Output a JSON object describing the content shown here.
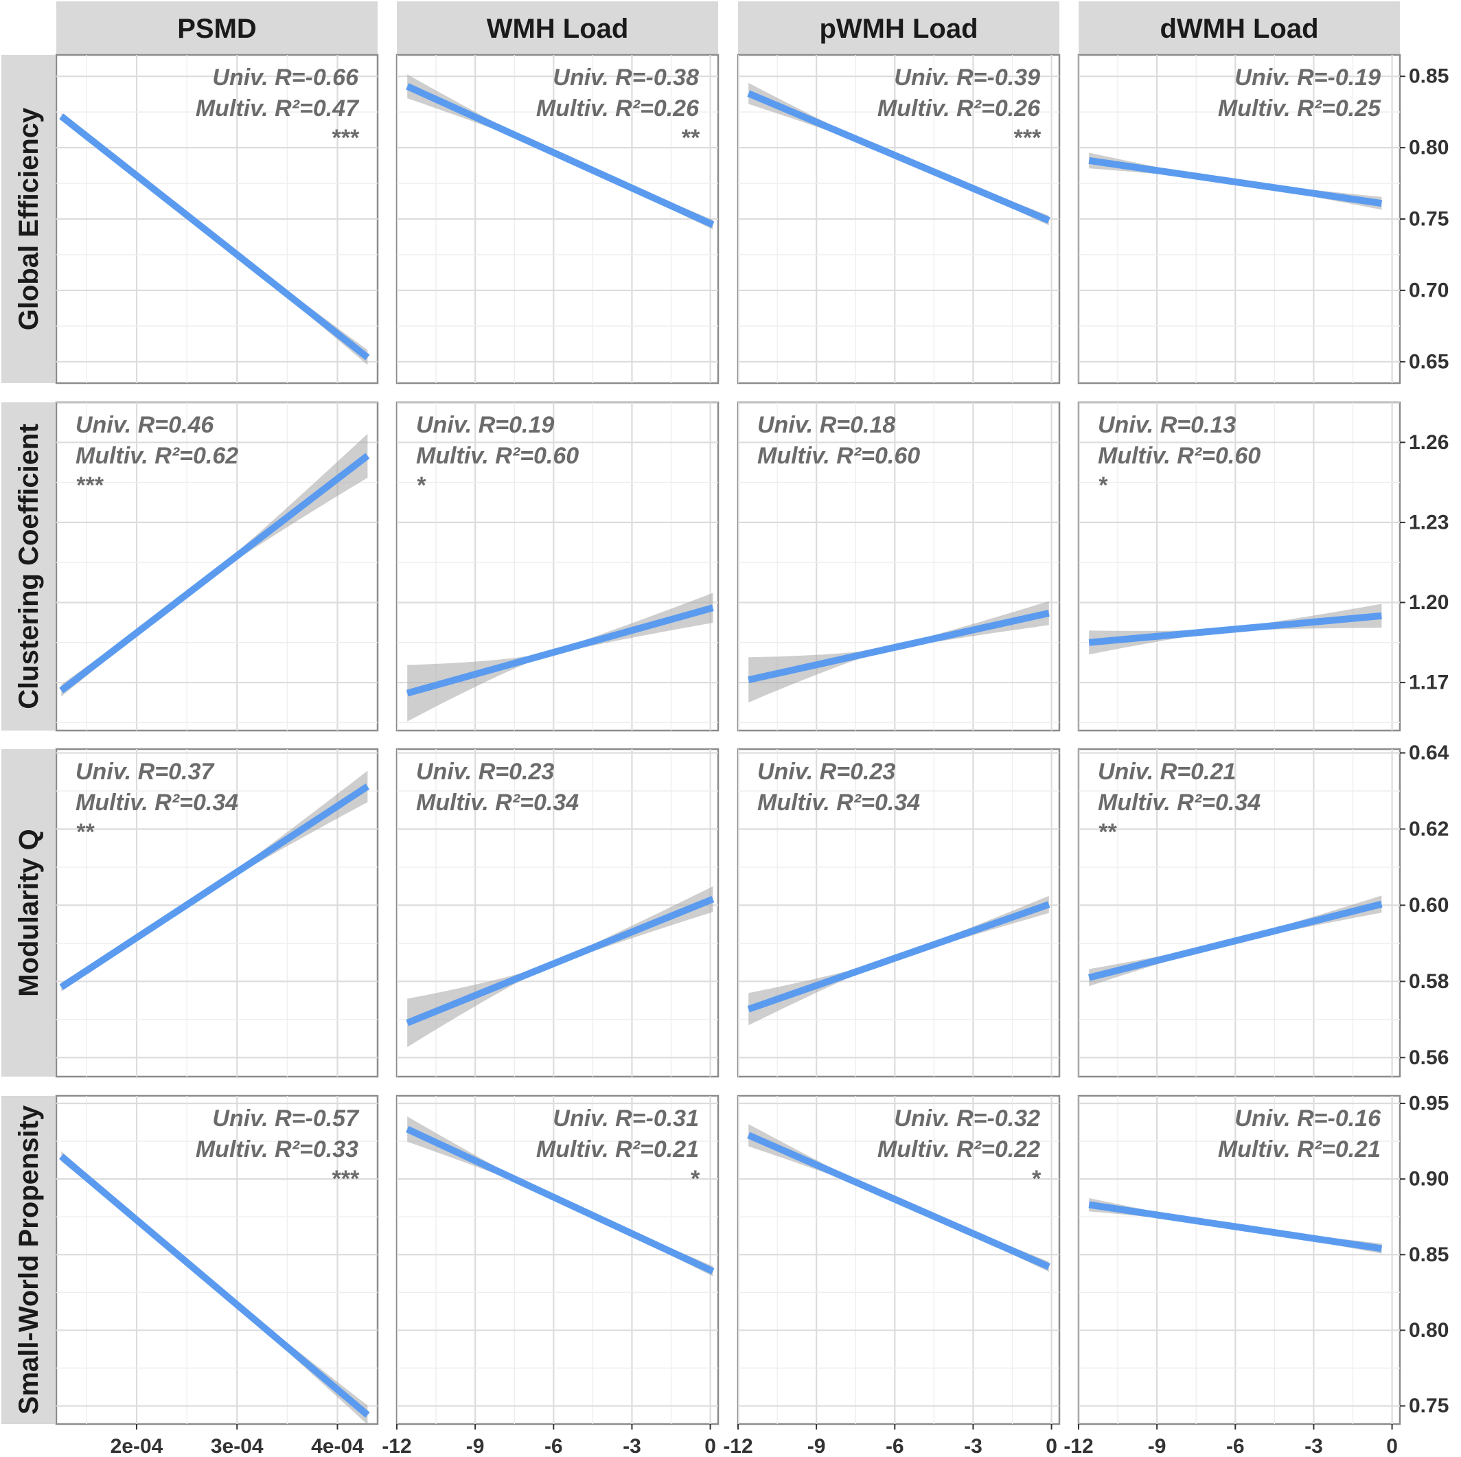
{
  "chart_data": {
    "type": "line",
    "colors": {
      "fit_line": "#5b9bef",
      "confidence_band": "#a6a6a6",
      "strip": "#d9d9d9"
    },
    "columns": [
      {
        "label": "PSMD",
        "xlim": [
          0.00012,
          0.00044
        ],
        "ticks": [
          0.0002,
          0.0003,
          0.0004
        ],
        "tick_labels": [
          "2e-04",
          "3e-04",
          "4e-04"
        ]
      },
      {
        "label": "WMH Load",
        "xlim": [
          -12,
          0.3
        ],
        "ticks": [
          -12,
          -9,
          -6,
          -3,
          0
        ],
        "tick_labels": [
          "-12",
          "-9",
          "-6",
          "-3",
          "0"
        ]
      },
      {
        "label": "pWMH Load",
        "xlim": [
          -12,
          0.3
        ],
        "ticks": [
          -12,
          -9,
          -6,
          -3,
          0
        ],
        "tick_labels": [
          "-12",
          "-9",
          "-6",
          "-3",
          "0"
        ]
      },
      {
        "label": "dWMH Load",
        "xlim": [
          -12,
          0.3
        ],
        "ticks": [
          -12,
          -9,
          -6,
          -3,
          0
        ],
        "tick_labels": [
          "-12",
          "-9",
          "-6",
          "-3",
          "0"
        ]
      }
    ],
    "rows": [
      {
        "label": "Global Efficiency",
        "ylim": [
          0.635,
          0.865
        ],
        "ticks": [
          0.65,
          0.7,
          0.75,
          0.8,
          0.85
        ],
        "tick_labels": [
          "0.65",
          "0.70",
          "0.75",
          "0.80",
          "0.85"
        ]
      },
      {
        "label": "Clustering Coefficient",
        "ylim": [
          1.152,
          1.275
        ],
        "ticks": [
          1.17,
          1.2,
          1.23,
          1.26
        ],
        "tick_labels": [
          "1.17",
          "1.20",
          "1.23",
          "1.26"
        ]
      },
      {
        "label": "Modularity Q",
        "ylim": [
          0.555,
          0.641
        ],
        "ticks": [
          0.56,
          0.58,
          0.6,
          0.62,
          0.64
        ],
        "tick_labels": [
          "0.56",
          "0.58",
          "0.60",
          "0.62",
          "0.64"
        ]
      },
      {
        "label": "Small-World Propensity",
        "ylim": [
          0.738,
          0.955
        ],
        "ticks": [
          0.75,
          0.8,
          0.85,
          0.9,
          0.95
        ],
        "tick_labels": [
          "0.75",
          "0.80",
          "0.85",
          "0.90",
          "0.95"
        ]
      }
    ],
    "panels": [
      {
        "row": 0,
        "col": 0,
        "univ": "Univ. R=-0.66",
        "multiv": "Multiv. R²=0.47",
        "sig": "***",
        "x": [
          0.000125,
          0.00043
        ],
        "y": [
          0.822,
          0.653
        ],
        "se": [
          0.002,
          0.005
        ]
      },
      {
        "row": 0,
        "col": 1,
        "univ": "Univ. R=-0.38",
        "multiv": "Multiv. R²=0.26",
        "sig": "**",
        "x": [
          -11.6,
          0.1
        ],
        "y": [
          0.843,
          0.746
        ],
        "se": [
          0.008,
          0.003
        ]
      },
      {
        "row": 0,
        "col": 2,
        "univ": "Univ. R=-0.39",
        "multiv": "Multiv. R²=0.26",
        "sig": "***",
        "x": [
          -11.6,
          -0.1
        ],
        "y": [
          0.838,
          0.749
        ],
        "se": [
          0.007,
          0.003
        ]
      },
      {
        "row": 0,
        "col": 3,
        "univ": "Univ. R=-0.19",
        "multiv": "Multiv. R²=0.25",
        "sig": "",
        "x": [
          -11.6,
          -0.4
        ],
        "y": [
          0.791,
          0.761
        ],
        "se": [
          0.005,
          0.004
        ]
      },
      {
        "row": 1,
        "col": 0,
        "univ": "Univ. R=0.46",
        "multiv": "Multiv. R²=0.62",
        "sig": "***",
        "x": [
          0.000125,
          0.00043
        ],
        "y": [
          1.167,
          1.255
        ],
        "se": [
          0.002,
          0.008
        ]
      },
      {
        "row": 1,
        "col": 1,
        "univ": "Univ. R=0.19",
        "multiv": "Multiv. R²=0.60",
        "sig": "*",
        "x": [
          -11.6,
          0.1
        ],
        "y": [
          1.166,
          1.198
        ],
        "se": [
          0.01,
          0.005
        ]
      },
      {
        "row": 1,
        "col": 2,
        "univ": "Univ. R=0.18",
        "multiv": "Multiv. R²=0.60",
        "sig": "",
        "x": [
          -11.6,
          -0.1
        ],
        "y": [
          1.171,
          1.196
        ],
        "se": [
          0.008,
          0.004
        ]
      },
      {
        "row": 1,
        "col": 3,
        "univ": "Univ. R=0.13",
        "multiv": "Multiv. R²=0.60",
        "sig": "*",
        "x": [
          -11.6,
          -0.4
        ],
        "y": [
          1.185,
          1.195
        ],
        "se": [
          0.004,
          0.004
        ]
      },
      {
        "row": 2,
        "col": 0,
        "univ": "Univ. R=0.37",
        "multiv": "Multiv. R²=0.34",
        "sig": "**",
        "x": [
          0.000125,
          0.00043
        ],
        "y": [
          0.5785,
          0.6312
        ],
        "se": [
          0.001,
          0.004
        ]
      },
      {
        "row": 2,
        "col": 1,
        "univ": "Univ. R=0.23",
        "multiv": "Multiv. R²=0.34",
        "sig": "",
        "x": [
          -11.6,
          0.1
        ],
        "y": [
          0.5691,
          0.6016
        ],
        "se": [
          0.006,
          0.003
        ]
      },
      {
        "row": 2,
        "col": 2,
        "univ": "Univ. R=0.23",
        "multiv": "Multiv. R²=0.34",
        "sig": "",
        "x": [
          -11.6,
          -0.1
        ],
        "y": [
          0.5727,
          0.6002
        ],
        "se": [
          0.004,
          0.002
        ]
      },
      {
        "row": 2,
        "col": 3,
        "univ": "Univ. R=0.21",
        "multiv": "Multiv. R²=0.34",
        "sig": "**",
        "x": [
          -11.6,
          -0.4
        ],
        "y": [
          0.581,
          0.6003
        ],
        "se": [
          0.002,
          0.002
        ]
      },
      {
        "row": 3,
        "col": 0,
        "univ": "Univ. R=-0.57",
        "multiv": "Multiv. R²=0.33",
        "sig": "***",
        "x": [
          0.000125,
          0.00043
        ],
        "y": [
          0.915,
          0.744
        ],
        "se": [
          0.003,
          0.006
        ]
      },
      {
        "row": 3,
        "col": 1,
        "univ": "Univ. R=-0.31",
        "multiv": "Multiv. R²=0.21",
        "sig": "*",
        "x": [
          -11.6,
          0.1
        ],
        "y": [
          0.933,
          0.839
        ],
        "se": [
          0.008,
          0.003
        ]
      },
      {
        "row": 3,
        "col": 2,
        "univ": "Univ. R=-0.32",
        "multiv": "Multiv. R²=0.22",
        "sig": "*",
        "x": [
          -11.6,
          -0.1
        ],
        "y": [
          0.929,
          0.842
        ],
        "se": [
          0.007,
          0.003
        ]
      },
      {
        "row": 3,
        "col": 3,
        "univ": "Univ. R=-0.16",
        "multiv": "Multiv. R²=0.21",
        "sig": "",
        "x": [
          -11.6,
          -0.4
        ],
        "y": [
          0.883,
          0.854
        ],
        "se": [
          0.004,
          0.003
        ]
      }
    ]
  }
}
